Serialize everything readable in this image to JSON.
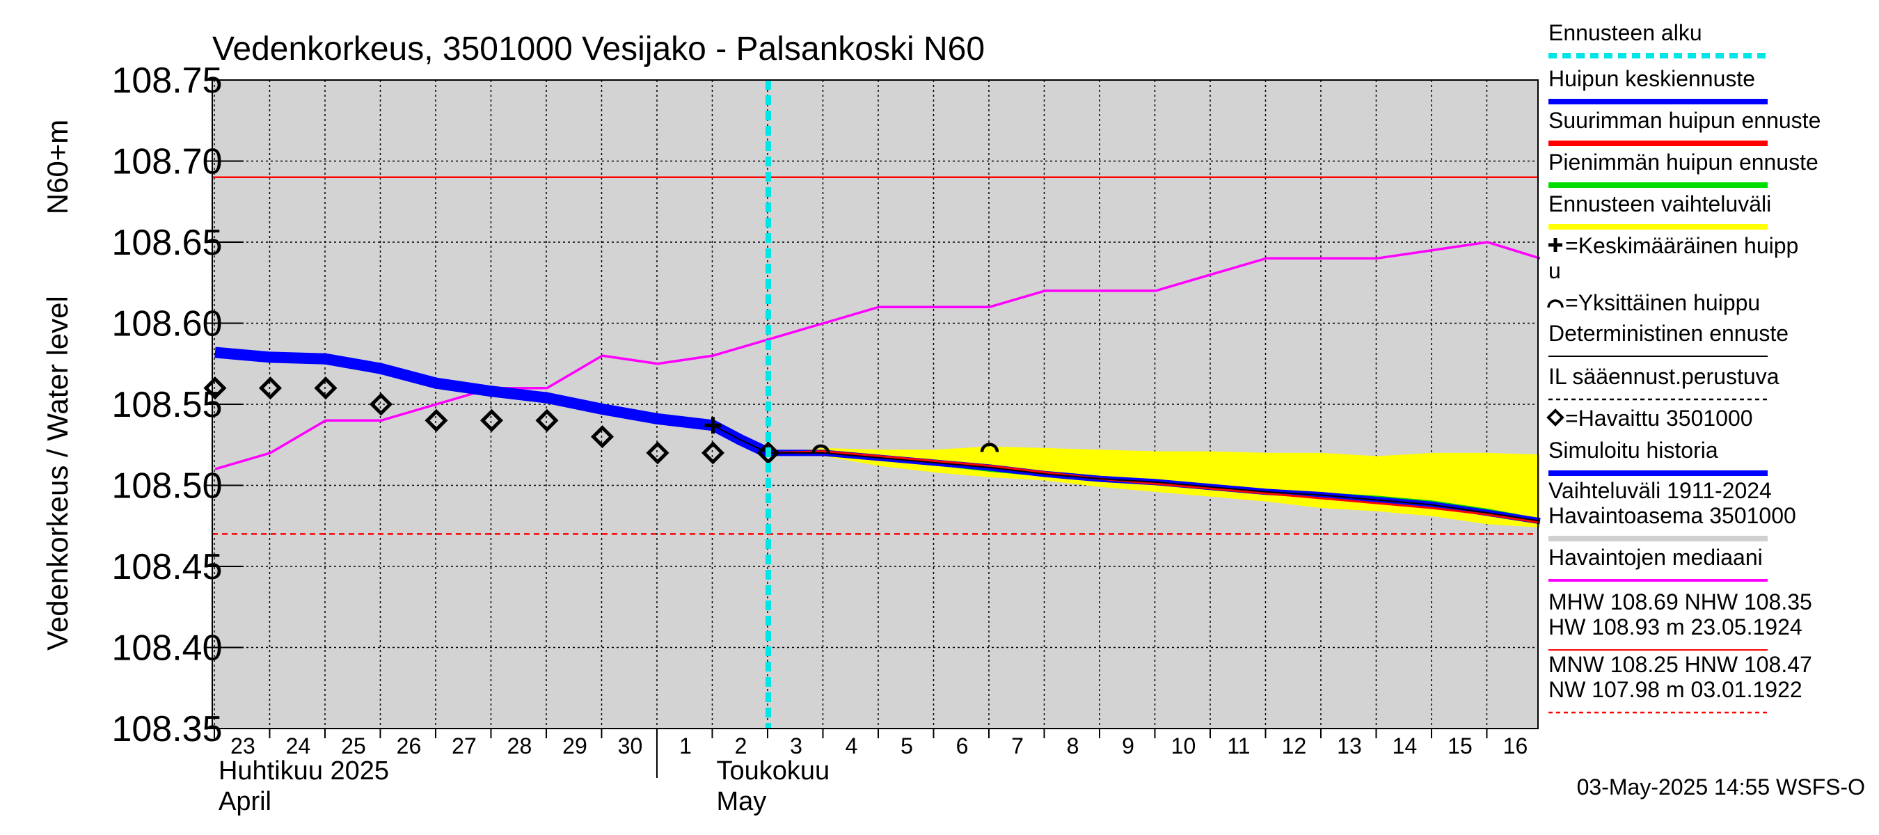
{
  "chart_data": {
    "type": "line",
    "title": "Vedenkorkeus, 3501000 Vesijako - Palsankoski N60",
    "ylabel_line1": "N60+m",
    "ylabel_line2": "Vedenkorkeus / Water level",
    "ylim": [
      108.35,
      108.75
    ],
    "yticks": [
      108.35,
      108.4,
      108.45,
      108.5,
      108.55,
      108.6,
      108.65,
      108.7,
      108.75
    ],
    "ytick_labels": [
      "108.35",
      "108.40",
      "108.45",
      "108.50",
      "108.55",
      "108.60",
      "108.65",
      "108.70",
      "108.75"
    ],
    "x_days": [
      23,
      24,
      25,
      26,
      27,
      28,
      29,
      30,
      31,
      32,
      33,
      34,
      35,
      36,
      37,
      38,
      39,
      40,
      41,
      42,
      43,
      44,
      45,
      46
    ],
    "x_tick_labels": [
      "23",
      "24",
      "25",
      "26",
      "27",
      "28",
      "29",
      "30",
      "1",
      "2",
      "3",
      "4",
      "5",
      "6",
      "7",
      "8",
      "9",
      "10",
      "11",
      "12",
      "13",
      "14",
      "15",
      "16"
    ],
    "month_labels": [
      {
        "fi": "Huhtikuu  2025",
        "en": "April",
        "start_day": 23
      },
      {
        "fi": "Toukokuu",
        "en": "May",
        "start_day": 32
      }
    ],
    "month_separator_day": 31,
    "reference_lines": [
      {
        "name": "MHW",
        "value": 108.69,
        "color": "#ff0000",
        "style": "solid"
      },
      {
        "name": "HNW",
        "value": 108.47,
        "color": "#ff0000",
        "style": "dashed"
      }
    ],
    "forecast_start_day": 33.0,
    "series": [
      {
        "name": "Havaintojen mediaani",
        "color": "#ff00ff",
        "x": [
          23,
          24,
          25,
          26,
          27,
          28,
          29,
          30,
          31,
          32,
          33,
          34,
          35,
          36,
          37,
          38,
          39,
          40,
          41,
          42,
          43,
          44,
          45,
          46,
          46.95
        ],
        "y": [
          108.51,
          108.52,
          108.54,
          108.54,
          108.55,
          108.56,
          108.56,
          108.58,
          108.575,
          108.58,
          108.59,
          108.6,
          108.61,
          108.61,
          108.61,
          108.62,
          108.62,
          108.62,
          108.63,
          108.64,
          108.64,
          108.64,
          108.645,
          108.65,
          108.64
        ]
      },
      {
        "name": "Simuloitu historia",
        "color": "#0000ff",
        "x": [
          23,
          24,
          25,
          26,
          27,
          28,
          29,
          30,
          31,
          32,
          32.5,
          33
        ],
        "y": [
          108.582,
          108.579,
          108.578,
          108.572,
          108.563,
          108.558,
          108.554,
          108.547,
          108.541,
          108.537,
          108.528,
          108.52
        ]
      },
      {
        "name": "Huipun keskiennuste",
        "color": "#0000ff",
        "x": [
          33,
          34,
          35,
          36,
          37,
          38,
          39,
          40,
          41,
          42,
          43,
          44,
          45,
          46,
          46.95
        ],
        "y": [
          108.52,
          108.52,
          108.517,
          108.514,
          108.511,
          108.507,
          108.504,
          108.502,
          108.499,
          108.496,
          108.494,
          108.491,
          108.488,
          108.483,
          108.478
        ]
      },
      {
        "name": "Suurimman huipun ennuste",
        "color": "#ff0000",
        "x": [
          33,
          34,
          35,
          36,
          37,
          38,
          39,
          40,
          41,
          42,
          43,
          44,
          45,
          46,
          46.95
        ],
        "y": [
          108.52,
          108.521,
          108.518,
          108.515,
          108.512,
          108.508,
          108.504,
          108.501,
          108.498,
          108.495,
          108.492,
          108.489,
          108.486,
          108.482,
          108.477
        ]
      },
      {
        "name": "Pienimmän huipun ennuste",
        "color": "#00cc00",
        "x": [
          33,
          34,
          35,
          36,
          37,
          38,
          39,
          40,
          41,
          42,
          43,
          44,
          45,
          46,
          46.95
        ],
        "y": [
          108.52,
          108.519,
          108.516,
          108.513,
          108.509,
          108.506,
          108.503,
          108.501,
          108.499,
          108.497,
          108.495,
          108.493,
          108.49,
          108.485,
          108.479
        ]
      }
    ],
    "band": {
      "name": "Ennusteen vaihteluväli",
      "color": "#ffff00",
      "x": [
        33,
        34,
        35,
        36,
        37,
        38,
        39,
        40,
        41,
        42,
        43,
        44,
        45,
        46,
        46.95
      ],
      "upper": [
        108.52,
        108.523,
        108.522,
        108.522,
        108.524,
        108.523,
        108.522,
        108.521,
        108.521,
        108.52,
        108.52,
        108.518,
        108.52,
        108.52,
        108.519
      ],
      "lower": [
        108.52,
        108.518,
        108.512,
        108.508,
        108.505,
        108.503,
        108.499,
        108.496,
        108.493,
        108.49,
        108.486,
        108.484,
        108.481,
        108.476,
        108.474
      ]
    },
    "observations": {
      "name": "Havaittu 3501000",
      "x": [
        23,
        24,
        25,
        26,
        27,
        28,
        29,
        30,
        31,
        32,
        33
      ],
      "y": [
        108.56,
        108.56,
        108.56,
        108.55,
        108.54,
        108.54,
        108.54,
        108.53,
        108.52,
        108.52,
        108.52
      ]
    },
    "mean_peak": {
      "x": 32,
      "y": 108.537
    },
    "single_peaks": [
      {
        "x": 33.95,
        "y": 108.523
      },
      {
        "x": 37.0,
        "y": 108.524
      }
    ],
    "legend": [
      {
        "text": "Ennusteen alku",
        "color": "#00e5e5",
        "style": "dotted"
      },
      {
        "text": "Huipun keskiennuste",
        "color": "#0000ff",
        "style": "thick"
      },
      {
        "text": "Suurimman huipun ennuste",
        "color": "#ff0000",
        "style": "thick"
      },
      {
        "text": "Pienimmän huipun ennuste",
        "color": "#00dd00",
        "style": "thick"
      },
      {
        "text": "Ennusteen vaihteluväli",
        "color": "#ffff00",
        "style": "thick"
      },
      {
        "text": "=Keskimääräinen huipp",
        "text2": "u",
        "color": "#000000",
        "style": "none",
        "marker": "plus"
      },
      {
        "text": "=Yksittäinen huippu",
        "color": "#000000",
        "style": "none",
        "marker": "arc"
      },
      {
        "text": "Deterministinen ennuste",
        "color": "#000000",
        "style": "thin"
      },
      {
        "text": "IL sääennust.perustuva",
        "color": "#000000",
        "style": "dashed"
      },
      {
        "text": "=Havaittu 3501000",
        "color": "#000000",
        "style": "none",
        "marker": "diamond"
      },
      {
        "text": "Simuloitu historia",
        "color": "#0000ff",
        "style": "thick"
      },
      {
        "text": "Vaihteluväli 1911-2024",
        "text2": " Havaintoasema 3501000",
        "color": "#d0d0d0",
        "style": "thick"
      },
      {
        "text": "Havaintojen mediaani",
        "color": "#ff00ff",
        "style": "medium"
      },
      {
        "text": "MHW 108.69 NHW 108.35",
        "text2": "HW 108.93 m 23.05.1924",
        "color": "#ff0000",
        "style": "thin"
      },
      {
        "text": "MNW 108.25 HNW 108.47",
        "text2": "NW 107.98 m 03.01.1922",
        "color": "#ff0000",
        "style": "dashed"
      }
    ],
    "footer": "03-May-2025 14:55 WSFS-O"
  }
}
